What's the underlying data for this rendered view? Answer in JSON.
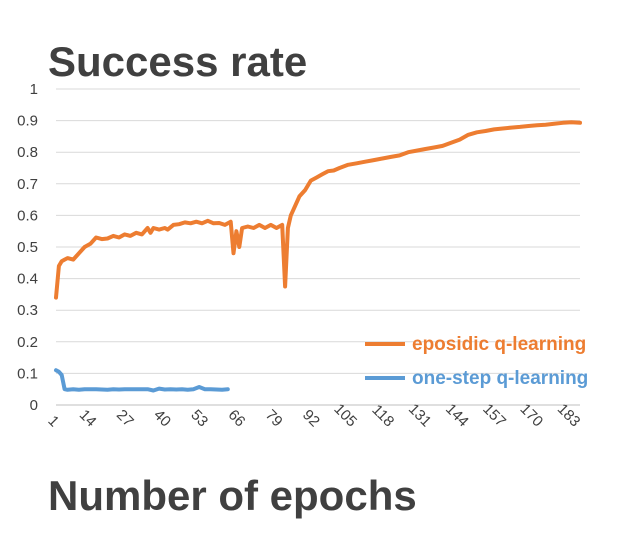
{
  "chart_data": {
    "type": "line",
    "title": "Success rate",
    "xlabel": "Number of epochs",
    "ylabel": "",
    "ylim": [
      0,
      1
    ],
    "xlim": [
      1,
      184
    ],
    "yticks": [
      "0",
      "0.1",
      "0.2",
      "0.3",
      "0.4",
      "0.5",
      "0.6",
      "0.7",
      "0.8",
      "0.9",
      "1"
    ],
    "xticks": [
      "1",
      "14",
      "27",
      "40",
      "53",
      "66",
      "79",
      "92",
      "105",
      "118",
      "131",
      "144",
      "157",
      "170",
      "183"
    ],
    "grid": true,
    "legend_position": "bottom-right",
    "series": [
      {
        "name": "eposidic q-learning",
        "color": "#ED7D31",
        "points": [
          [
            1,
            0.34
          ],
          [
            2,
            0.44
          ],
          [
            3,
            0.455
          ],
          [
            4,
            0.46
          ],
          [
            5,
            0.465
          ],
          [
            7,
            0.46
          ],
          [
            9,
            0.48
          ],
          [
            11,
            0.5
          ],
          [
            13,
            0.51
          ],
          [
            15,
            0.53
          ],
          [
            17,
            0.525
          ],
          [
            19,
            0.527
          ],
          [
            21,
            0.535
          ],
          [
            23,
            0.53
          ],
          [
            25,
            0.54
          ],
          [
            27,
            0.535
          ],
          [
            29,
            0.545
          ],
          [
            31,
            0.54
          ],
          [
            33,
            0.56
          ],
          [
            34,
            0.545
          ],
          [
            35,
            0.56
          ],
          [
            37,
            0.555
          ],
          [
            39,
            0.56
          ],
          [
            40,
            0.555
          ],
          [
            42,
            0.57
          ],
          [
            44,
            0.572
          ],
          [
            46,
            0.578
          ],
          [
            48,
            0.575
          ],
          [
            50,
            0.58
          ],
          [
            52,
            0.575
          ],
          [
            54,
            0.583
          ],
          [
            56,
            0.575
          ],
          [
            58,
            0.576
          ],
          [
            60,
            0.57
          ],
          [
            62,
            0.58
          ],
          [
            63,
            0.48
          ],
          [
            64,
            0.55
          ],
          [
            65,
            0.5
          ],
          [
            66,
            0.56
          ],
          [
            68,
            0.565
          ],
          [
            70,
            0.56
          ],
          [
            72,
            0.57
          ],
          [
            74,
            0.56
          ],
          [
            76,
            0.57
          ],
          [
            78,
            0.56
          ],
          [
            80,
            0.57
          ],
          [
            81,
            0.375
          ],
          [
            82,
            0.56
          ],
          [
            83,
            0.6
          ],
          [
            84,
            0.62
          ],
          [
            86,
            0.66
          ],
          [
            88,
            0.68
          ],
          [
            90,
            0.71
          ],
          [
            92,
            0.72
          ],
          [
            94,
            0.73
          ],
          [
            96,
            0.74
          ],
          [
            98,
            0.742
          ],
          [
            100,
            0.75
          ],
          [
            103,
            0.76
          ],
          [
            106,
            0.765
          ],
          [
            109,
            0.77
          ],
          [
            112,
            0.775
          ],
          [
            115,
            0.78
          ],
          [
            118,
            0.785
          ],
          [
            121,
            0.79
          ],
          [
            124,
            0.8
          ],
          [
            127,
            0.805
          ],
          [
            130,
            0.81
          ],
          [
            133,
            0.815
          ],
          [
            136,
            0.82
          ],
          [
            139,
            0.83
          ],
          [
            142,
            0.84
          ],
          [
            145,
            0.855
          ],
          [
            148,
            0.863
          ],
          [
            151,
            0.867
          ],
          [
            154,
            0.872
          ],
          [
            157,
            0.875
          ],
          [
            160,
            0.878
          ],
          [
            163,
            0.88
          ],
          [
            166,
            0.883
          ],
          [
            169,
            0.885
          ],
          [
            172,
            0.887
          ],
          [
            175,
            0.89
          ],
          [
            178,
            0.893
          ],
          [
            181,
            0.895
          ],
          [
            184,
            0.893
          ]
        ]
      },
      {
        "name": "one-step q-learning",
        "color": "#5B9BD5",
        "points": [
          [
            1,
            0.11
          ],
          [
            2,
            0.105
          ],
          [
            3,
            0.095
          ],
          [
            4,
            0.05
          ],
          [
            5,
            0.048
          ],
          [
            7,
            0.05
          ],
          [
            9,
            0.048
          ],
          [
            11,
            0.05
          ],
          [
            13,
            0.05
          ],
          [
            15,
            0.05
          ],
          [
            17,
            0.049
          ],
          [
            19,
            0.048
          ],
          [
            21,
            0.05
          ],
          [
            23,
            0.049
          ],
          [
            25,
            0.05
          ],
          [
            27,
            0.05
          ],
          [
            29,
            0.05
          ],
          [
            31,
            0.05
          ],
          [
            33,
            0.05
          ],
          [
            35,
            0.046
          ],
          [
            37,
            0.052
          ],
          [
            39,
            0.049
          ],
          [
            41,
            0.05
          ],
          [
            43,
            0.049
          ],
          [
            45,
            0.05
          ],
          [
            47,
            0.048
          ],
          [
            49,
            0.05
          ],
          [
            51,
            0.057
          ],
          [
            53,
            0.05
          ],
          [
            55,
            0.05
          ],
          [
            57,
            0.049
          ],
          [
            59,
            0.048
          ],
          [
            61,
            0.05
          ]
        ]
      }
    ]
  }
}
